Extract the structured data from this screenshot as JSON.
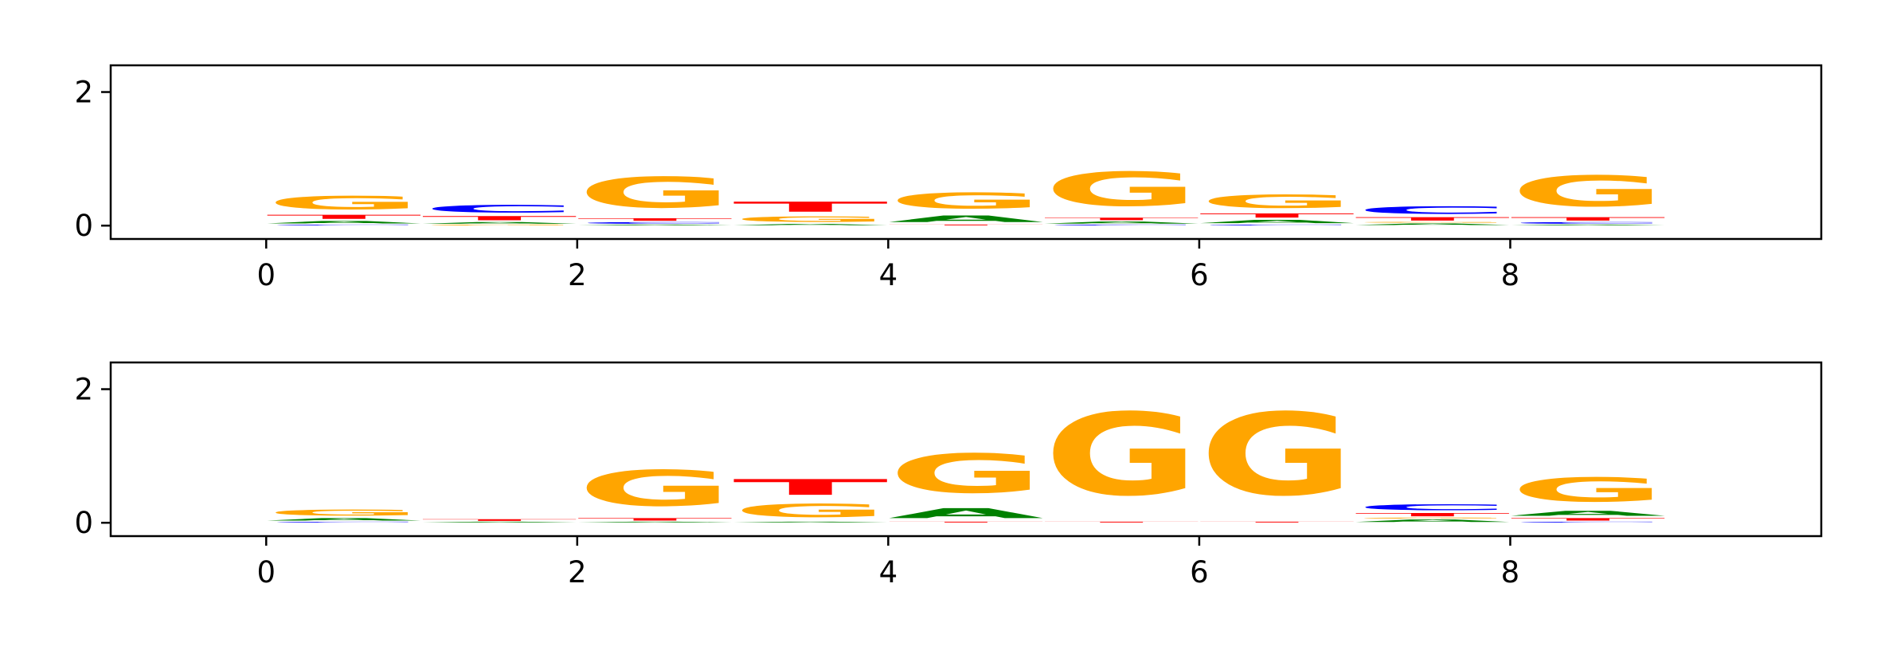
{
  "colors": {
    "A": "#008000",
    "C": "#0000ff",
    "G": "#ffa500",
    "T": "#ff0000",
    "axis": "#000000"
  },
  "chart_data": [
    {
      "type": "sequence-logo",
      "title": "",
      "xlabel": "",
      "ylabel": "",
      "xlim": [
        -1,
        10
      ],
      "ylim": [
        -0.2,
        2.4
      ],
      "xticks": [
        "0",
        "2",
        "4",
        "6",
        "8"
      ],
      "yticks": [
        "0",
        "2"
      ],
      "grid": false,
      "positions": [
        {
          "x": 0,
          "stack": [
            [
              "C",
              0.02
            ],
            [
              "A",
              0.06
            ],
            [
              "T",
              0.1
            ],
            [
              "G",
              0.32
            ]
          ]
        },
        {
          "x": 1,
          "stack": [
            [
              "G",
              0.02
            ],
            [
              "A",
              0.04
            ],
            [
              "T",
              0.1
            ],
            [
              "C",
              0.18
            ]
          ]
        },
        {
          "x": 2,
          "stack": [
            [
              "A",
              0.02
            ],
            [
              "C",
              0.04
            ],
            [
              "T",
              0.06
            ],
            [
              "G",
              0.74
            ]
          ]
        },
        {
          "x": 3,
          "stack": [
            [
              "A",
              0.03
            ],
            [
              "G",
              0.13
            ],
            [
              "T",
              0.24
            ]
          ]
        },
        {
          "x": 4,
          "stack": [
            [
              "T",
              0.02
            ],
            [
              "A",
              0.16
            ],
            [
              "G",
              0.38
            ]
          ]
        },
        {
          "x": 5,
          "stack": [
            [
              "C",
              0.02
            ],
            [
              "A",
              0.05
            ],
            [
              "T",
              0.06
            ],
            [
              "G",
              0.82
            ]
          ]
        },
        {
          "x": 6,
          "stack": [
            [
              "C",
              0.02
            ],
            [
              "A",
              0.08
            ],
            [
              "T",
              0.1
            ],
            [
              "G",
              0.32
            ]
          ]
        },
        {
          "x": 7,
          "stack": [
            [
              "A",
              0.04
            ],
            [
              "G",
              0.02
            ],
            [
              "T",
              0.08
            ],
            [
              "C",
              0.18
            ]
          ]
        },
        {
          "x": 8,
          "stack": [
            [
              "A",
              0.02
            ],
            [
              "C",
              0.04
            ],
            [
              "T",
              0.08
            ],
            [
              "G",
              0.74
            ]
          ]
        }
      ]
    },
    {
      "type": "sequence-logo",
      "title": "",
      "xlabel": "",
      "ylabel": "",
      "xlim": [
        -1,
        10
      ],
      "ylim": [
        -0.2,
        2.4
      ],
      "xticks": [
        "0",
        "2",
        "4",
        "6",
        "8"
      ],
      "yticks": [
        "0",
        "2"
      ],
      "grid": false,
      "positions": [
        {
          "x": 0,
          "stack": [
            [
              "C",
              0.02
            ],
            [
              "A",
              0.06
            ],
            [
              "G",
              0.14
            ]
          ]
        },
        {
          "x": 1,
          "stack": [
            [
              "A",
              0.02
            ],
            [
              "T",
              0.04
            ]
          ]
        },
        {
          "x": 2,
          "stack": [
            [
              "A",
              0.02
            ],
            [
              "T",
              0.06
            ],
            [
              "G",
              0.86
            ]
          ]
        },
        {
          "x": 3,
          "stack": [
            [
              "A",
              0.02
            ],
            [
              "G",
              0.32
            ],
            [
              "T",
              0.38
            ]
          ]
        },
        {
          "x": 4,
          "stack": [
            [
              "T",
              0.02
            ],
            [
              "A",
              0.24
            ],
            [
              "G",
              0.94
            ]
          ]
        },
        {
          "x": 5,
          "stack": [
            [
              "T",
              0.02
            ],
            [
              "G",
              1.98
            ]
          ]
        },
        {
          "x": 6,
          "stack": [
            [
              "T",
              0.02
            ],
            [
              "G",
              1.98
            ]
          ]
        },
        {
          "x": 7,
          "stack": [
            [
              "A",
              0.06
            ],
            [
              "G",
              0.02
            ],
            [
              "T",
              0.08
            ],
            [
              "C",
              0.14
            ]
          ]
        },
        {
          "x": 8,
          "stack": [
            [
              "C",
              0.02
            ],
            [
              "T",
              0.06
            ],
            [
              "A",
              0.12
            ],
            [
              "G",
              0.58
            ]
          ]
        }
      ]
    }
  ]
}
